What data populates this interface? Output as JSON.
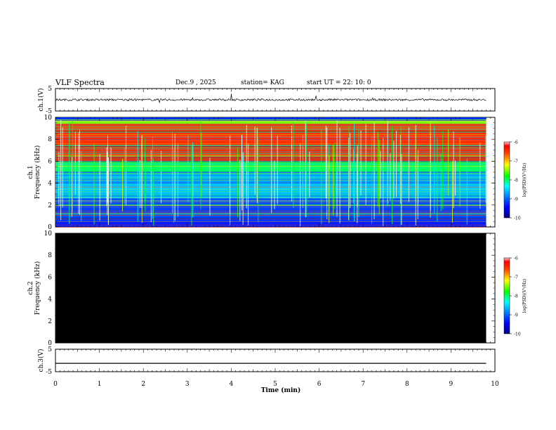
{
  "header": {
    "title": "VLF Spectra",
    "date": "Dec.9 , 2025",
    "station": "station= KAG",
    "start_ut": "start  UT =   22: 10: 0"
  },
  "chart_data": [
    {
      "type": "line",
      "panel": "ch1-waveform",
      "ylabel": "ch.1(V)",
      "ylim": [
        -5,
        5
      ],
      "yticks": [
        "5",
        "-5"
      ],
      "xlim": [
        0,
        10
      ],
      "level": 0
    },
    {
      "type": "heatmap",
      "panel": "ch1-spectrogram",
      "ylabel": "ch.1\nFrequency (kHz)",
      "ylabel_lines": [
        "ch.1",
        "Frequency (kHz)"
      ],
      "ylim": [
        0,
        10
      ],
      "yticks": [
        "0",
        "2",
        "4",
        "6",
        "8",
        "10"
      ],
      "xlim": [
        0,
        10
      ],
      "data_extent_min": 9.8,
      "colorbar": {
        "label": "log(PSD)(V²/Hz)",
        "range": [
          -10,
          -6
        ],
        "ticks": [
          "-6",
          "-7",
          "-8",
          "-9",
          "-10"
        ]
      },
      "bands": [
        {
          "from": 0.0,
          "to": 0.8,
          "level": -9.3
        },
        {
          "from": 0.8,
          "to": 2.6,
          "level": -9.1
        },
        {
          "from": 2.6,
          "to": 5.0,
          "level": -8.6
        },
        {
          "from": 5.0,
          "to": 6.0,
          "level": -8.0
        },
        {
          "from": 6.0,
          "to": 9.4,
          "level": -6.5
        },
        {
          "from": 9.4,
          "to": 9.8,
          "level": -7.5
        },
        {
          "from": 9.8,
          "to": 10.0,
          "level": null
        }
      ]
    },
    {
      "type": "heatmap",
      "panel": "ch2-spectrogram",
      "ylabel": "ch.2\nFrequency (kHz)",
      "ylabel_lines": [
        "ch.2",
        "Frequency (kHz)"
      ],
      "ylim": [
        0,
        10
      ],
      "yticks": [
        "0",
        "2",
        "4",
        "6",
        "8",
        "10"
      ],
      "xlim": [
        0,
        10
      ],
      "data_extent_min": 9.8,
      "colorbar": {
        "label": "log(PSD)(V²/Hz)",
        "range": [
          -10,
          -6
        ],
        "ticks": [
          "-6",
          "-7",
          "-8",
          "-9",
          "-10"
        ]
      },
      "level": "below -10"
    },
    {
      "type": "line",
      "panel": "ch3-waveform",
      "ylabel": "ch.3(V)",
      "ylim": [
        -5,
        5
      ],
      "yticks": [
        "5",
        "-5"
      ],
      "xlim": [
        0,
        10
      ],
      "level": -1.3
    }
  ],
  "x_axis": {
    "label": "Time (min)",
    "ticks": [
      "0",
      "1",
      "2",
      "3",
      "4",
      "5",
      "6",
      "7",
      "8",
      "9",
      "10"
    ]
  },
  "colors": {
    "background": "#ffffff",
    "ink": "#000000",
    "empty_spectrogram": "#000000"
  }
}
